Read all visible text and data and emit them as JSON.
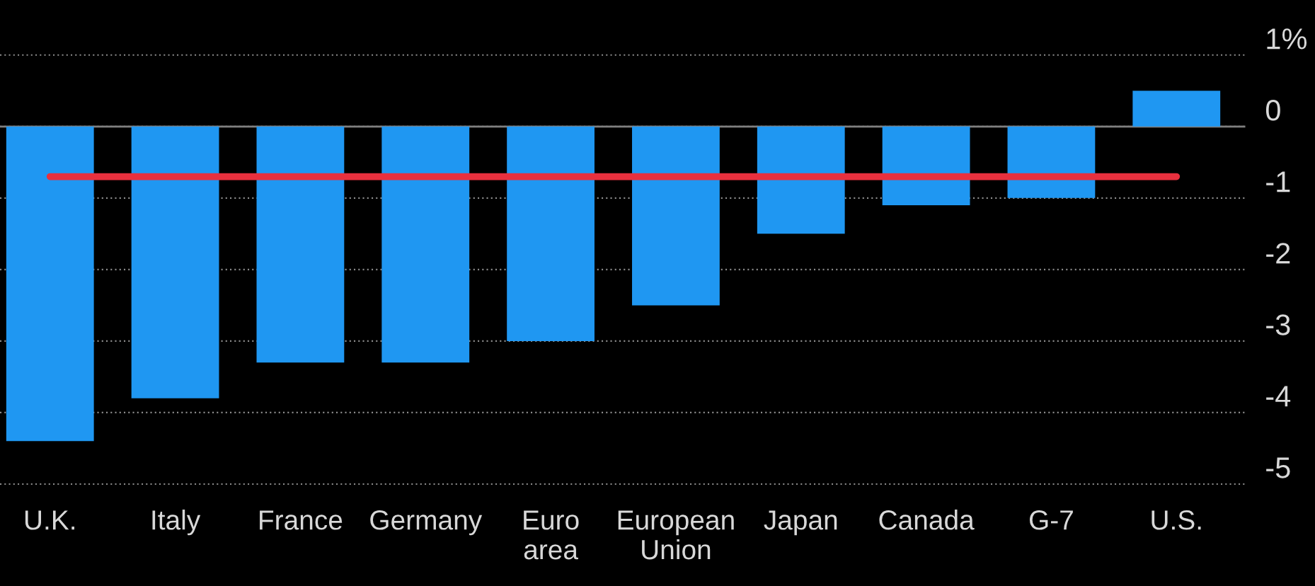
{
  "chart_data": {
    "type": "bar",
    "categories": [
      "U.K.",
      "Italy",
      "France",
      "Germany",
      "Euro\narea",
      "European\nUnion",
      "Japan",
      "Canada",
      "G-7",
      "U.S."
    ],
    "series": [
      {
        "color": "#1f97f2",
        "values": [
          -4.4,
          -3.8,
          -3.3,
          -3.3,
          -3.0,
          -2.5,
          -1.5,
          -1.1,
          -1.0,
          0.5
        ]
      },
      {
        "type": "line",
        "color": "#e8303e",
        "values": [
          -0.7,
          -0.7,
          -0.7,
          -0.7,
          -0.7,
          -0.7,
          -0.7,
          -0.7,
          -0.7,
          -0.7
        ]
      }
    ],
    "ylim": [
      -5,
      1
    ],
    "yticks": [
      {
        "value": 1,
        "label": "1%"
      },
      0,
      -1,
      -2,
      -3,
      -4,
      -5
    ],
    "grid": "y",
    "legend": false,
    "marker": "none",
    "line_style": "solid"
  }
}
